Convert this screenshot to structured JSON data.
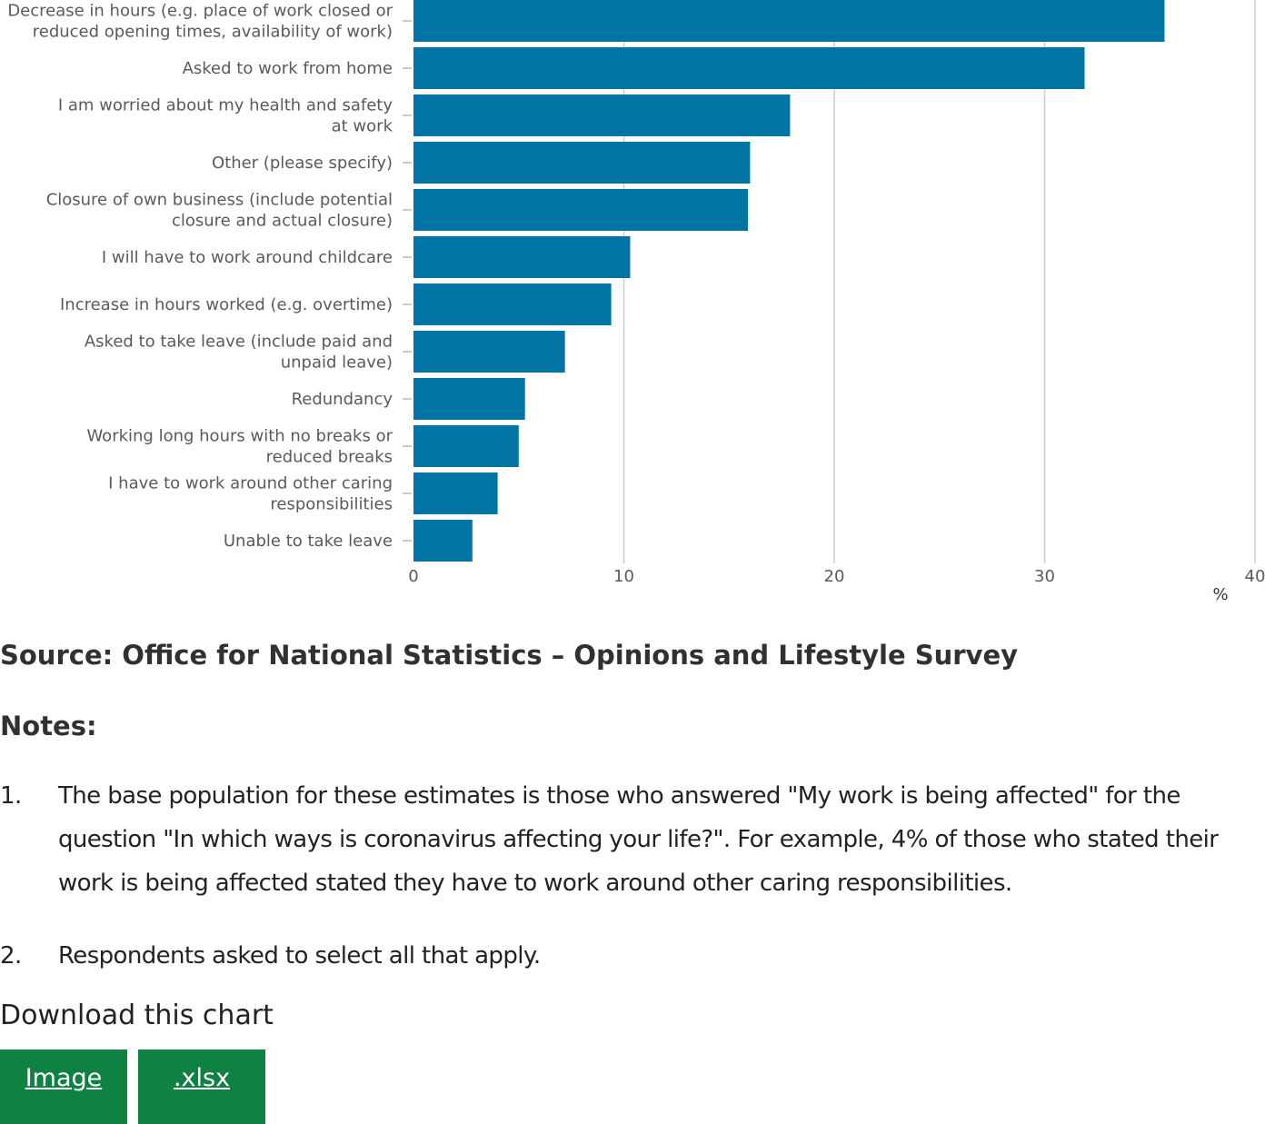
{
  "chart_data": {
    "type": "bar",
    "orientation": "horizontal",
    "categories": [
      [
        "Decrease in hours (e.g. place of work closed or",
        "reduced opening times, availability of work)"
      ],
      [
        "Asked to work from home"
      ],
      [
        "I am worried about my health and safety",
        "at work"
      ],
      [
        "Other (please specify)"
      ],
      [
        "Closure of own business (include potential",
        "closure and actual closure)"
      ],
      [
        "I will have to work around childcare"
      ],
      [
        "Increase in hours worked (e.g. overtime)"
      ],
      [
        "Asked to take leave (include paid and",
        "unpaid leave)"
      ],
      [
        "Redundancy"
      ],
      [
        "Working long hours with no breaks or",
        "reduced breaks"
      ],
      [
        "I have to work around other caring",
        "responsibilities"
      ],
      [
        "Unable to take leave"
      ]
    ],
    "values": [
      35.7,
      31.9,
      17.9,
      16.0,
      15.9,
      10.3,
      9.4,
      7.2,
      5.3,
      5.0,
      4.0,
      2.8
    ],
    "xlim": [
      0,
      40
    ],
    "xticks": [
      0,
      10,
      20,
      30,
      40
    ],
    "xlabel": "%",
    "grid": true,
    "bar_color": "#0075a3",
    "grid_color": "#cccccc"
  },
  "source": "Source: Office for National Statistics – Opinions and Lifestyle Survey",
  "notes": {
    "heading": "Notes:",
    "items": [
      {
        "num": "1.",
        "text": "The base population for these estimates is those who answered \"My work is being affected\" for the question \"In which ways is coronavirus affecting your life?\". For example, 4% of those who stated their work is being affected stated they have to work around other caring responsibilities."
      },
      {
        "num": "2.",
        "text": "Respondents asked to select all that apply."
      }
    ]
  },
  "download": {
    "title": "Download this chart",
    "image_label": "Image",
    "xlsx_label": ".xlsx"
  }
}
